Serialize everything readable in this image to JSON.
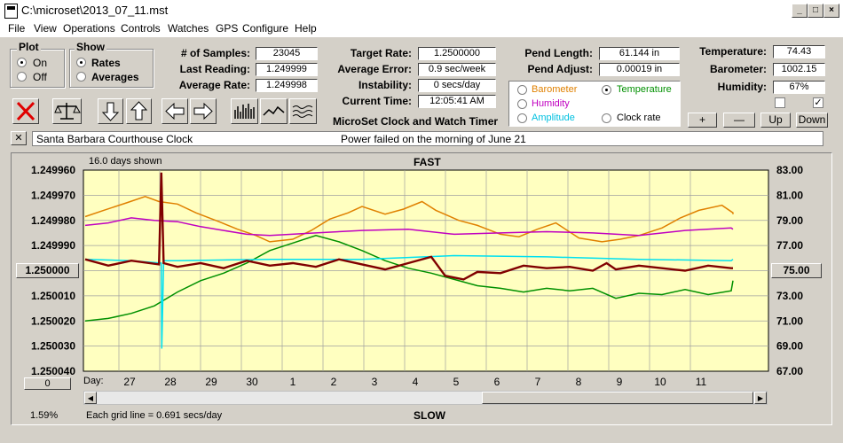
{
  "window": {
    "title": "C:\\microset\\2013_07_11.mst"
  },
  "menu": [
    "File",
    "View",
    "Operations",
    "Controls",
    "Watches",
    "GPS",
    "Configure",
    "Help"
  ],
  "plot": {
    "label": "Plot",
    "on": "On",
    "off": "Off",
    "selected": "On"
  },
  "show": {
    "label": "Show",
    "rates": "Rates",
    "averages": "Averages",
    "selected": "Rates"
  },
  "stats": [
    {
      "label": "# of Samples:",
      "value": "23045"
    },
    {
      "label": "Last Reading:",
      "value": "1.249999"
    },
    {
      "label": "Average Rate:",
      "value": "1.249998"
    }
  ],
  "rates": [
    {
      "label": "Target Rate:",
      "value": "1.2500000"
    },
    {
      "label": "Average Error:",
      "value": "0.9 sec/week"
    },
    {
      "label": "Instability:",
      "value": "0 secs/day"
    },
    {
      "label": "Current Time:",
      "value": "12:05:41 AM"
    }
  ],
  "pend": [
    {
      "label": "Pend Length:",
      "value": "61.144 in"
    },
    {
      "label": "Pend Adjust:",
      "value": "0.00019 in"
    }
  ],
  "env": [
    {
      "label": "Temperature:",
      "value": "74.43"
    },
    {
      "label": "Barometer:",
      "value": "1002.15"
    },
    {
      "label": "Humidity:",
      "value": "67%"
    }
  ],
  "timer_label": "MicroSet Clock and Watch Timer",
  "series_select": {
    "options": [
      {
        "label": "Barometer",
        "color": "#e08000"
      },
      {
        "label": "Temperature",
        "color": "#009000"
      },
      {
        "label": "Humidity",
        "color": "#c000c0"
      },
      {
        "label": "Amplitude",
        "color": "#00c0e0"
      },
      {
        "label": "Clock rate",
        "color": "#000000"
      }
    ],
    "selected": "Temperature"
  },
  "adjust_buttons": [
    "+",
    "—",
    "Up",
    "Down"
  ],
  "clock_name": "Santa Barbara Courthouse Clock",
  "note": "Power failed on the morning of June 21",
  "close_x": "✕",
  "colors": {
    "background": "#ffffc0",
    "barometer": "#e08000",
    "temperature": "#009000",
    "humidity": "#c000c0",
    "amplitude": "#00e0f0",
    "rate": "#800000"
  },
  "chart_data": {
    "type": "line",
    "title_top": "FAST",
    "title_bottom": "SLOW",
    "days_shown": "16.0 days shown",
    "grid_note": "Each grid line = 0.691 secs/day",
    "percent": "1.59%",
    "day_label": "Day:",
    "x_ticks": [
      "27",
      "28",
      "29",
      "30",
      "1",
      "2",
      "3",
      "4",
      "5",
      "6",
      "7",
      "8",
      "9",
      "10",
      "11"
    ],
    "y_left_ticks": [
      "1.249960",
      "1.249970",
      "1.249980",
      "1.249990",
      "1.250000",
      "1.250010",
      "1.250020",
      "1.250030",
      "1.250040"
    ],
    "y_right_ticks": [
      "83.00",
      "81.00",
      "79.00",
      "77.00",
      "75.00",
      "73.00",
      "71.00",
      "69.00",
      "67.00"
    ],
    "y_left_range": [
      1.24996,
      1.25004
    ],
    "y_right_range": [
      67,
      83
    ],
    "left_spin": "1.250000",
    "right_spin": "75.00",
    "bottom_spin": "0",
    "series": [
      {
        "name": "Barometer",
        "color": "#e08000",
        "x": [
          0,
          0.4,
          0.9,
          1.3,
          1.6,
          2.0,
          2.4,
          2.9,
          3.3,
          3.7,
          4.0,
          4.5,
          4.9,
          5.3,
          5.7,
          6.0,
          6.5,
          6.9,
          7.3,
          7.6,
          8.1,
          8.5,
          9.0,
          9.4,
          9.8,
          10.2,
          10.7,
          11.2,
          11.6,
          12.0,
          12.5,
          12.9,
          13.3,
          13.8,
          14.2,
          14.6
        ],
        "y": [
          79.3,
          79.8,
          80.4,
          80.9,
          80.5,
          80.3,
          79.6,
          78.9,
          78.3,
          77.8,
          77.3,
          77.5,
          78.2,
          79.1,
          79.6,
          80.1,
          79.5,
          79.9,
          80.5,
          79.8,
          79.0,
          78.6,
          77.9,
          77.7,
          78.3,
          78.8,
          77.6,
          77.3,
          77.5,
          77.8,
          78.4,
          79.2,
          79.8,
          80.2,
          79.6,
          79.5
        ]
      },
      {
        "name": "Temperature",
        "color": "#009000",
        "x": [
          0,
          0.5,
          1.0,
          1.5,
          2.0,
          2.5,
          3.0,
          3.5,
          4.0,
          4.5,
          5.0,
          5.5,
          6.0,
          6.5,
          7.0,
          7.5,
          8.0,
          8.5,
          9.0,
          9.5,
          10.0,
          10.5,
          11.0,
          11.5,
          12.0,
          12.5,
          13.0,
          13.5,
          14.0,
          14.6
        ],
        "y": [
          71.0,
          71.2,
          71.6,
          72.2,
          73.3,
          74.2,
          74.8,
          75.6,
          76.6,
          77.2,
          77.8,
          77.3,
          76.6,
          75.8,
          75.2,
          74.8,
          74.3,
          73.8,
          73.6,
          73.3,
          73.6,
          73.4,
          73.6,
          72.8,
          73.2,
          73.1,
          73.5,
          73.1,
          73.4,
          74.2
        ]
      },
      {
        "name": "Humidity",
        "color": "#c000c0",
        "x": [
          0,
          0.5,
          1.0,
          1.5,
          2.0,
          2.5,
          3.0,
          3.5,
          4.0,
          5.0,
          6.0,
          7.0,
          8.0,
          9.0,
          10.0,
          11.0,
          12.0,
          13.0,
          14.0,
          14.6
        ],
        "y": [
          78.6,
          78.8,
          79.2,
          79.0,
          78.9,
          78.5,
          78.2,
          77.9,
          77.8,
          78.0,
          78.2,
          78.3,
          77.9,
          78.0,
          78.1,
          78.0,
          77.8,
          78.2,
          78.4,
          78.3
        ]
      },
      {
        "name": "Amplitude",
        "color": "#00e0f0",
        "x": [
          0,
          1,
          1.65,
          1.66,
          1.7,
          2,
          4,
          6,
          8,
          10,
          12,
          14,
          14.6
        ],
        "y": [
          75.9,
          75.8,
          75.6,
          68.8,
          75.8,
          75.8,
          75.9,
          75.9,
          76.2,
          76.1,
          75.9,
          75.8,
          75.9
        ]
      },
      {
        "name": "Clock rate",
        "color": "#800000",
        "x": [
          0,
          0.5,
          1.0,
          1.6,
          1.65,
          1.7,
          2.0,
          2.5,
          3.0,
          3.5,
          4.0,
          4.5,
          5.0,
          5.5,
          6.0,
          6.5,
          7.0,
          7.5,
          7.8,
          8.2,
          8.5,
          9.0,
          9.5,
          10.0,
          10.5,
          11.0,
          11.3,
          11.5,
          12.0,
          12.5,
          13.0,
          13.5,
          14.0,
          14.6
        ],
        "y": [
          75.9,
          75.4,
          75.8,
          75.5,
          82.8,
          75.6,
          75.3,
          75.6,
          75.2,
          75.8,
          75.4,
          75.6,
          75.3,
          75.9,
          75.5,
          75.1,
          75.6,
          76.1,
          74.6,
          74.3,
          74.9,
          74.8,
          75.4,
          75.2,
          75.3,
          75.0,
          75.6,
          75.1,
          75.4,
          75.2,
          75.0,
          75.4,
          75.2,
          75.2
        ]
      }
    ]
  }
}
